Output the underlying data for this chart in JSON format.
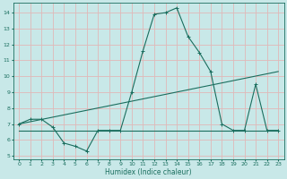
{
  "background_color": "#c8e8e8",
  "grid_color": "#e0b8b8",
  "line_color": "#1a6e5e",
  "xlabel": "Humidex (Indice chaleur)",
  "xlim": [
    -0.5,
    23.5
  ],
  "ylim": [
    4.8,
    14.6
  ],
  "yticks": [
    5,
    6,
    7,
    8,
    9,
    10,
    11,
    12,
    13,
    14
  ],
  "xticks": [
    0,
    1,
    2,
    3,
    4,
    5,
    6,
    7,
    8,
    9,
    10,
    11,
    12,
    13,
    14,
    15,
    16,
    17,
    18,
    19,
    20,
    21,
    22,
    23
  ],
  "line1_x": [
    0,
    1,
    2,
    3,
    4,
    5,
    6,
    7,
    8,
    9,
    10,
    11,
    12,
    13,
    14,
    15,
    16,
    17,
    18,
    19,
    20,
    21,
    22,
    23
  ],
  "line1_y": [
    7.0,
    7.3,
    7.3,
    6.8,
    5.8,
    5.6,
    5.3,
    6.6,
    6.6,
    6.6,
    9.0,
    11.6,
    13.9,
    14.0,
    14.3,
    12.5,
    11.5,
    10.3,
    7.0,
    6.6,
    6.6,
    9.5,
    6.6,
    6.6
  ],
  "line2_x": [
    0,
    23
  ],
  "line2_y": [
    7.0,
    10.3
  ],
  "line3_x": [
    0,
    1,
    2,
    3,
    4,
    5,
    6,
    7,
    8,
    9,
    10,
    11,
    12,
    13,
    14,
    15,
    16,
    17,
    18,
    19,
    20,
    21,
    22,
    23
  ],
  "line3_y": [
    6.6,
    6.6,
    6.6,
    6.6,
    6.6,
    6.6,
    6.6,
    6.6,
    6.6,
    6.6,
    6.6,
    6.6,
    6.6,
    6.6,
    6.6,
    6.6,
    6.6,
    6.6,
    6.6,
    6.6,
    6.6,
    6.6,
    6.6,
    6.6
  ]
}
